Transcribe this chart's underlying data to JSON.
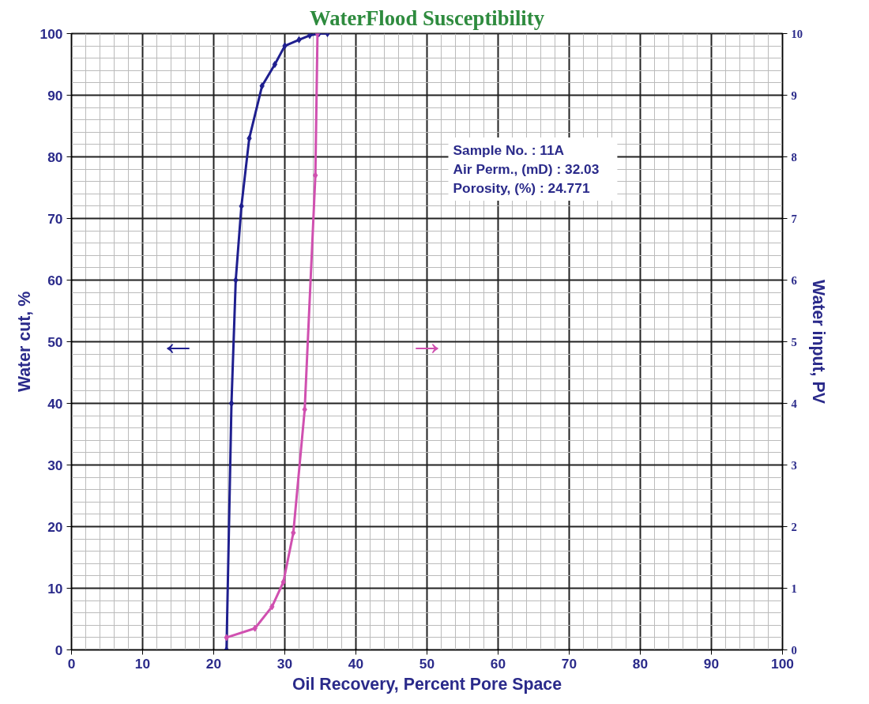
{
  "chart_data": {
    "type": "line",
    "title": "WaterFlood Susceptibility",
    "xlabel": "Oil Recovery, Percent Pore Space",
    "ylabel": "Water cut, %",
    "y2label": "Water input, PV",
    "xlim": [
      0,
      100
    ],
    "xticks": [
      0,
      10,
      20,
      30,
      40,
      50,
      60,
      70,
      80,
      90,
      100
    ],
    "ylim": [
      0,
      100
    ],
    "yticks": [
      0,
      10,
      20,
      30,
      40,
      50,
      60,
      70,
      80,
      90,
      100
    ],
    "y2lim": [
      0,
      10
    ],
    "y2ticks": [
      0,
      1,
      2,
      3,
      4,
      5,
      6,
      7,
      8,
      9,
      10
    ],
    "grid": true,
    "marker": "diamond",
    "line_style": "solid",
    "series": [
      {
        "color": "#1f1f8f",
        "x": [
          21.8,
          22.5,
          23.1,
          23.9,
          25.0,
          26.8,
          28.6,
          30.0,
          32.0,
          33.5,
          34.8,
          36.0
        ],
        "values": [
          0,
          40,
          60,
          72,
          83,
          91.5,
          95,
          98,
          99,
          99.7,
          100,
          100
        ]
      },
      {
        "color": "#d050b0",
        "axis": "y2",
        "x": [
          21.8,
          25.8,
          28.2,
          29.8,
          31.2,
          32.8,
          34.3,
          34.6
        ],
        "values": [
          0.2,
          0.35,
          0.7,
          1.1,
          1.9,
          3.9,
          7.7,
          10
        ]
      }
    ],
    "annotations": [
      "←",
      "→",
      "Sample No.        : 11A\nAir Perm., (mD) : 32.03\nPorosity, (%)       : 24.771"
    ]
  }
}
